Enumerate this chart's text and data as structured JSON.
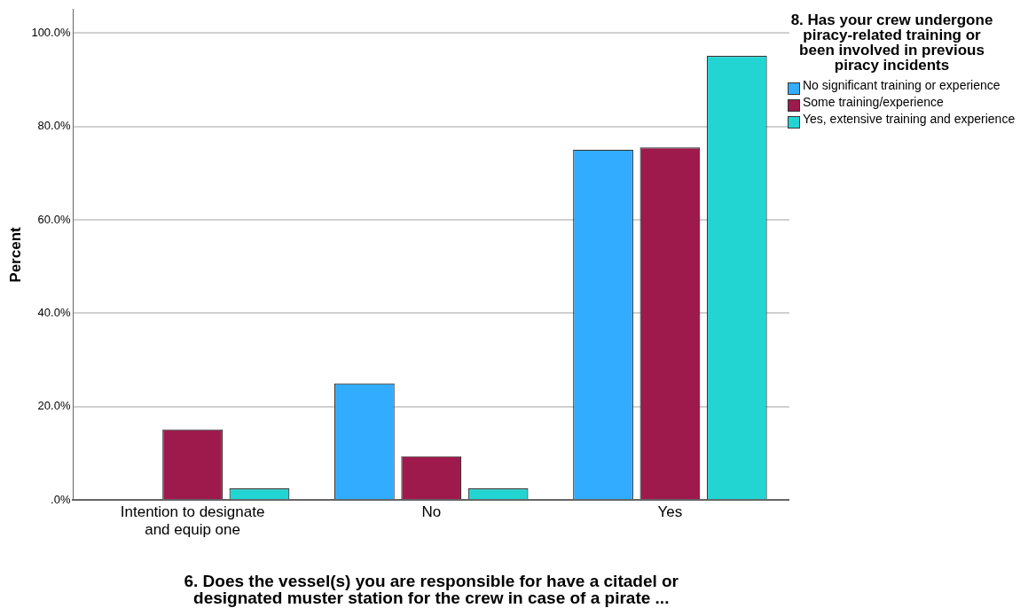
{
  "chart_data": {
    "type": "bar",
    "categories": [
      "Intention to designate and equip one",
      "No",
      "Yes"
    ],
    "series": [
      {
        "name": "No significant training or experience",
        "color": "#31acff",
        "values": [
          0,
          25.0,
          75.0
        ]
      },
      {
        "name": "Some training/experience",
        "color": "#9e1a4d",
        "values": [
          15.1,
          9.4,
          75.5
        ]
      },
      {
        "name": "Yes, extensive training and experience",
        "color": "#22d5d2",
        "values": [
          2.5,
          2.5,
          95.1
        ]
      }
    ],
    "xlabel": "6. Does the vessel(s) you are responsible for have a citadel or designated muster station for the crew in case of a pirate ...",
    "ylabel": "Percent",
    "legend_title": "8. Has your crew undergone piracy-related training or been involved in previous piracy incidents",
    "legend": "right",
    "ylim": [
      0,
      105
    ],
    "yticks": [
      {
        "value": 0,
        "label": ".0%"
      },
      {
        "value": 20,
        "label": "20.0%"
      },
      {
        "value": 40,
        "label": "40.0%"
      },
      {
        "value": 60,
        "label": "60.0%"
      },
      {
        "value": 80,
        "label": "80.0%"
      },
      {
        "value": 100,
        "label": "100.0%"
      }
    ],
    "grid": "y"
  }
}
